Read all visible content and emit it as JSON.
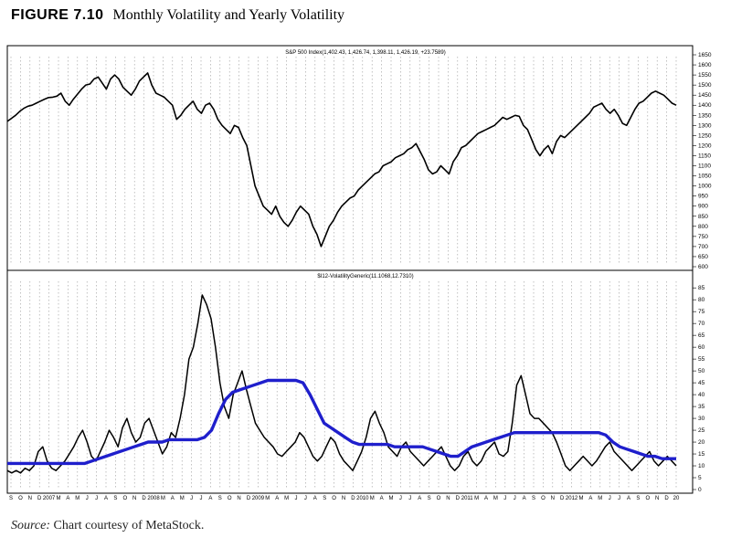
{
  "figure": {
    "number": "FIGURE 7.10",
    "title": "Monthly Volatility and Yearly Volatility",
    "source_label": "Source:",
    "source_text": "Chart courtesy of MetaStock."
  },
  "colors": {
    "price_line": "#000000",
    "volatility_line": "#000000",
    "yearly_volatility_line": "#1f1fcc",
    "grid": "#9a9a9a",
    "frame": "#000000"
  },
  "chart_data": [
    {
      "type": "line",
      "title": "S&P 500 Index(1,402.43, 1,426.74, 1,398.11, 1,426.19, +23.7589)",
      "ylim": [
        600,
        1650
      ],
      "yticks": [
        1650,
        1600,
        1550,
        1500,
        1450,
        1400,
        1350,
        1300,
        1250,
        1200,
        1150,
        1100,
        1050,
        1000,
        950,
        900,
        850,
        800,
        750,
        700,
        650,
        600
      ],
      "grid": true,
      "series": [
        {
          "values": [
            1320,
            1335,
            1350,
            1370,
            1385,
            1395,
            1400,
            1410,
            1420,
            1430,
            1438,
            1440,
            1445,
            1460,
            1420,
            1400,
            1430,
            1455,
            1480,
            1500,
            1505,
            1530,
            1540,
            1510,
            1480,
            1530,
            1550,
            1530,
            1490,
            1470,
            1450,
            1480,
            1520,
            1540,
            1560,
            1500,
            1460,
            1450,
            1440,
            1420,
            1400,
            1330,
            1350,
            1380,
            1400,
            1420,
            1380,
            1360,
            1400,
            1410,
            1380,
            1330,
            1300,
            1280,
            1260,
            1300,
            1290,
            1240,
            1200,
            1100,
            1000,
            950,
            900,
            880,
            860,
            900,
            850,
            820,
            800,
            830,
            870,
            900,
            880,
            860,
            800,
            760,
            700,
            750,
            800,
            830,
            870,
            900,
            920,
            940,
            950,
            980,
            1000,
            1020,
            1040,
            1060,
            1070,
            1100,
            1110,
            1120,
            1140,
            1150,
            1160,
            1180,
            1190,
            1210,
            1170,
            1130,
            1080,
            1060,
            1070,
            1100,
            1080,
            1060,
            1120,
            1150,
            1190,
            1200,
            1220,
            1240,
            1260,
            1270,
            1280,
            1290,
            1300,
            1320,
            1340,
            1330,
            1340,
            1350,
            1345,
            1300,
            1280,
            1230,
            1180,
            1150,
            1180,
            1200,
            1160,
            1220,
            1250,
            1240,
            1260,
            1280,
            1300,
            1320,
            1340,
            1360,
            1390,
            1400,
            1410,
            1380,
            1360,
            1380,
            1350,
            1310,
            1300,
            1340,
            1380,
            1410,
            1420,
            1440,
            1460,
            1470,
            1460,
            1450,
            1430,
            1410,
            1400
          ]
        }
      ]
    },
    {
      "type": "line",
      "title": "$I12-VolatilityGeneric(11.1068,12.7310)",
      "ylim": [
        0,
        87
      ],
      "yticks": [
        85,
        80,
        75,
        70,
        65,
        60,
        55,
        50,
        45,
        40,
        35,
        30,
        25,
        20,
        15,
        10,
        5,
        0
      ],
      "grid": true,
      "x_tick_labels": [
        "S",
        "O",
        "N",
        "D",
        "2007",
        "M",
        "A",
        "M",
        "J",
        "J",
        "A",
        "S",
        "O",
        "N",
        "D",
        "2008",
        "M",
        "A",
        "M",
        "J",
        "J",
        "A",
        "S",
        "O",
        "N",
        "D",
        "2009",
        "M",
        "A",
        "M",
        "J",
        "J",
        "A",
        "S",
        "O",
        "N",
        "D",
        "2010",
        "M",
        "A",
        "M",
        "J",
        "J",
        "A",
        "S",
        "O",
        "N",
        "D",
        "2011",
        "M",
        "A",
        "M",
        "J",
        "J",
        "A",
        "S",
        "O",
        "N",
        "D",
        "2012",
        "M",
        "A",
        "M",
        "J",
        "J",
        "A",
        "S",
        "O",
        "N",
        "D",
        "20"
      ],
      "series": [
        {
          "values": [
            8,
            7,
            8,
            7,
            9,
            8,
            10,
            16,
            18,
            12,
            9,
            8,
            10,
            12,
            15,
            18,
            22,
            25,
            20,
            14,
            12,
            16,
            20,
            25,
            22,
            18,
            26,
            30,
            24,
            20,
            22,
            28,
            30,
            25,
            20,
            15,
            18,
            24,
            22,
            30,
            40,
            55,
            60,
            70,
            82,
            78,
            72,
            60,
            45,
            35,
            30,
            40,
            45,
            50,
            42,
            35,
            28,
            25,
            22,
            20,
            18,
            15,
            14,
            16,
            18,
            20,
            24,
            22,
            18,
            14,
            12,
            14,
            18,
            22,
            20,
            15,
            12,
            10,
            8,
            12,
            16,
            22,
            30,
            33,
            28,
            24,
            18,
            16,
            14,
            18,
            20,
            16,
            14,
            12,
            10,
            12,
            14,
            16,
            18,
            14,
            10,
            8,
            10,
            14,
            16,
            12,
            10,
            12,
            16,
            18,
            20,
            15,
            14,
            16,
            28,
            44,
            48,
            40,
            32,
            30,
            30,
            28,
            26,
            24,
            20,
            15,
            10,
            8,
            10,
            12,
            14,
            12,
            10,
            12,
            15,
            18,
            20,
            16,
            14,
            12,
            10,
            8,
            10,
            12,
            14,
            16,
            12,
            10,
            12,
            14,
            12,
            10
          ]
        },
        {
          "values": [
            11,
            11,
            11,
            11,
            11,
            11,
            11,
            11,
            11,
            11,
            11,
            11,
            12,
            13,
            14,
            15,
            16,
            17,
            18,
            19,
            20,
            20,
            20,
            21,
            21,
            21,
            21,
            21,
            22,
            25,
            32,
            38,
            41,
            42,
            43,
            44,
            45,
            46,
            46,
            46,
            46,
            46,
            45,
            40,
            34,
            28,
            26,
            24,
            22,
            20,
            19,
            19,
            19,
            19,
            19,
            18,
            18,
            18,
            18,
            18,
            17,
            16,
            15,
            14,
            14,
            16,
            18,
            19,
            20,
            21,
            22,
            23,
            24,
            24,
            24,
            24,
            24,
            24,
            24,
            24,
            24,
            24,
            24,
            24,
            24,
            23,
            20,
            18,
            17,
            16,
            15,
            14,
            14,
            13,
            13,
            13
          ]
        }
      ]
    }
  ]
}
